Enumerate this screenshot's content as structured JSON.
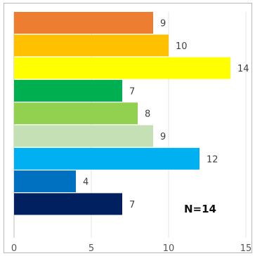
{
  "chart_data": {
    "type": "bar",
    "orientation": "horizontal",
    "categories": [
      "",
      "",
      "",
      "",
      "",
      "",
      "",
      "",
      ""
    ],
    "values": [
      9,
      10,
      14,
      7,
      8,
      9,
      12,
      4,
      7
    ],
    "colors": [
      "#ed7d31",
      "#ffc000",
      "#ffff00",
      "#00b050",
      "#92d050",
      "#c5e0b4",
      "#00b0f0",
      "#0070c0",
      "#002060"
    ],
    "xlim": [
      0,
      15
    ],
    "xticks": [
      "0",
      "5",
      "10",
      "15"
    ],
    "grid": true,
    "annotation": "N=14",
    "title": "",
    "xlabel": "",
    "ylabel": ""
  }
}
